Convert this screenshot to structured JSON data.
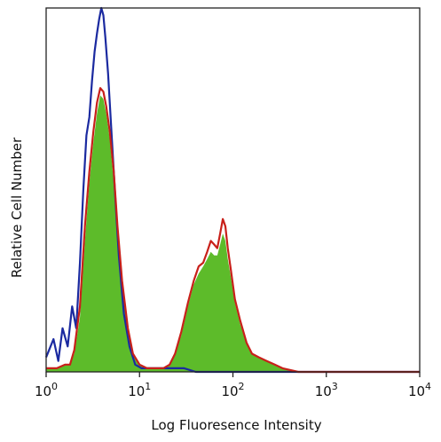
{
  "chart_data": {
    "type": "area",
    "title": "",
    "xlabel": "Log Fluoresence Intensity",
    "ylabel": "Relative Cell Number",
    "x_scale": "log",
    "xlim": [
      1,
      10000
    ],
    "ylim": [
      0,
      100
    ],
    "grid": false,
    "legend": "none",
    "x_ticks": [
      {
        "value": 1,
        "base": "10",
        "exp": "0"
      },
      {
        "value": 10,
        "base": "10",
        "exp": "1"
      },
      {
        "value": 100,
        "base": "10",
        "exp": "2"
      },
      {
        "value": 1000,
        "base": "10",
        "exp": "3"
      },
      {
        "value": 10000,
        "base": "10",
        "exp": "4"
      }
    ],
    "series": [
      {
        "color": "#1b2aa0",
        "style": "line",
        "points": [
          [
            1.0,
            4
          ],
          [
            1.2,
            9
          ],
          [
            1.35,
            3
          ],
          [
            1.5,
            12
          ],
          [
            1.7,
            7
          ],
          [
            1.9,
            18
          ],
          [
            2.1,
            12
          ],
          [
            2.3,
            30
          ],
          [
            2.5,
            50
          ],
          [
            2.7,
            65
          ],
          [
            2.9,
            70
          ],
          [
            3.1,
            80
          ],
          [
            3.3,
            88
          ],
          [
            3.5,
            93
          ],
          [
            3.7,
            97
          ],
          [
            3.9,
            100
          ],
          [
            4.1,
            98
          ],
          [
            4.3,
            92
          ],
          [
            4.6,
            82
          ],
          [
            5.0,
            66
          ],
          [
            5.5,
            48
          ],
          [
            6.0,
            32
          ],
          [
            6.8,
            16
          ],
          [
            7.8,
            7
          ],
          [
            9.0,
            2
          ],
          [
            10.5,
            1
          ],
          [
            13,
            1
          ],
          [
            17,
            1
          ],
          [
            22,
            1
          ],
          [
            30,
            1
          ],
          [
            40,
            0
          ],
          [
            60,
            0
          ],
          [
            100,
            0
          ],
          [
            300,
            0
          ],
          [
            1000,
            0
          ],
          [
            10000,
            0
          ]
        ]
      },
      {
        "color": "#c8201a",
        "style": "line",
        "points": [
          [
            1.0,
            1
          ],
          [
            1.3,
            1
          ],
          [
            1.6,
            2
          ],
          [
            1.8,
            2
          ],
          [
            2.0,
            6
          ],
          [
            2.3,
            18
          ],
          [
            2.6,
            40
          ],
          [
            2.9,
            55
          ],
          [
            3.2,
            66
          ],
          [
            3.5,
            74
          ],
          [
            3.8,
            78
          ],
          [
            4.1,
            77
          ],
          [
            4.4,
            73
          ],
          [
            4.8,
            66
          ],
          [
            5.3,
            55
          ],
          [
            5.8,
            40
          ],
          [
            6.5,
            25
          ],
          [
            7.5,
            12
          ],
          [
            8.5,
            5
          ],
          [
            10,
            2
          ],
          [
            12,
            1
          ],
          [
            15,
            1
          ],
          [
            18,
            1
          ],
          [
            21,
            2
          ],
          [
            24,
            5
          ],
          [
            28,
            11
          ],
          [
            33,
            19
          ],
          [
            38,
            25
          ],
          [
            43,
            29
          ],
          [
            48,
            30
          ],
          [
            53,
            33
          ],
          [
            58,
            36
          ],
          [
            63,
            35
          ],
          [
            68,
            34
          ],
          [
            73,
            38
          ],
          [
            78,
            42
          ],
          [
            83,
            40
          ],
          [
            88,
            34
          ],
          [
            95,
            28
          ],
          [
            105,
            20
          ],
          [
            120,
            14
          ],
          [
            140,
            8
          ],
          [
            160,
            5
          ],
          [
            190,
            4
          ],
          [
            230,
            3
          ],
          [
            280,
            2
          ],
          [
            340,
            1
          ],
          [
            500,
            0
          ],
          [
            1000,
            0
          ],
          [
            10000,
            0
          ]
        ]
      },
      {
        "color": "#5dbb2a",
        "style": "filled",
        "points": [
          [
            1.0,
            1
          ],
          [
            1.3,
            1
          ],
          [
            1.6,
            2
          ],
          [
            1.8,
            2
          ],
          [
            2.0,
            5
          ],
          [
            2.3,
            15
          ],
          [
            2.6,
            36
          ],
          [
            2.9,
            52
          ],
          [
            3.2,
            63
          ],
          [
            3.5,
            71
          ],
          [
            3.8,
            76
          ],
          [
            4.1,
            75
          ],
          [
            4.4,
            71
          ],
          [
            4.8,
            64
          ],
          [
            5.3,
            52
          ],
          [
            5.8,
            38
          ],
          [
            6.5,
            24
          ],
          [
            7.5,
            11
          ],
          [
            8.5,
            5
          ],
          [
            10,
            2
          ],
          [
            12,
            1
          ],
          [
            15,
            1
          ],
          [
            18,
            1
          ],
          [
            21,
            2
          ],
          [
            24,
            5
          ],
          [
            28,
            10
          ],
          [
            33,
            18
          ],
          [
            38,
            24
          ],
          [
            43,
            27
          ],
          [
            48,
            29
          ],
          [
            53,
            31
          ],
          [
            58,
            33
          ],
          [
            63,
            32
          ],
          [
            68,
            32
          ],
          [
            73,
            35
          ],
          [
            78,
            38
          ],
          [
            83,
            36
          ],
          [
            88,
            31
          ],
          [
            95,
            26
          ],
          [
            105,
            19
          ],
          [
            120,
            13
          ],
          [
            140,
            8
          ],
          [
            160,
            5
          ],
          [
            190,
            4
          ],
          [
            230,
            3
          ],
          [
            280,
            2
          ],
          [
            340,
            1
          ],
          [
            500,
            0
          ],
          [
            1000,
            0
          ],
          [
            10000,
            0
          ]
        ]
      }
    ]
  }
}
